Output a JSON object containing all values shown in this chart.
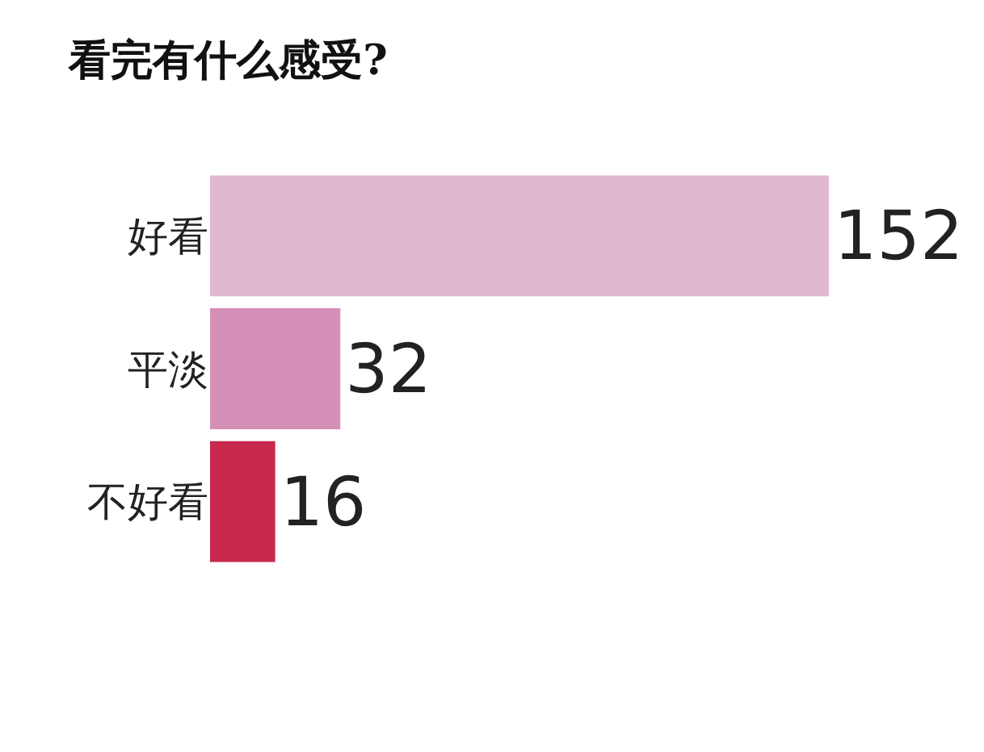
{
  "chart_data": {
    "type": "bar",
    "orientation": "horizontal",
    "title": "看完有什么感受?",
    "categories": [
      "好看",
      "平淡",
      "不好看"
    ],
    "values": [
      152,
      32,
      16
    ],
    "colors": [
      "#e0b8d0",
      "#d590b8",
      "#c8284c"
    ],
    "xlim": [
      0,
      152
    ],
    "data_labels": true,
    "tick_labels": "y"
  }
}
